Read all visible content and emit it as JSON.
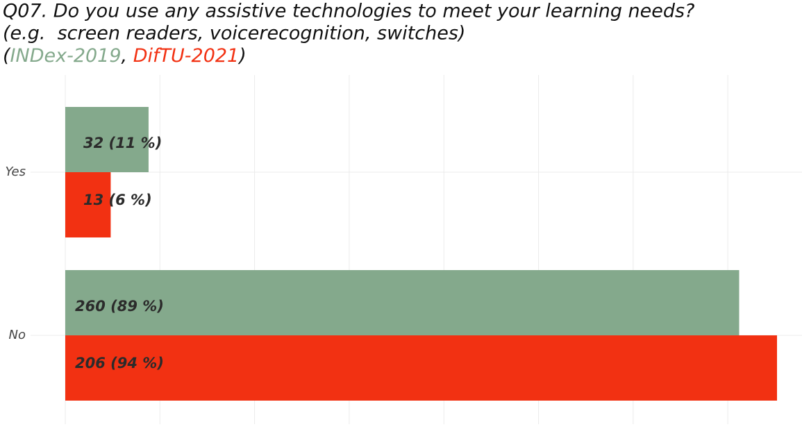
{
  "chart_data": {
    "type": "bar",
    "orientation": "horizontal",
    "title": "Q07. Do you use any assistive technologies to meet your learning needs?",
    "subtitle": "(e.g.  screen readers, voicerecognition, switches)",
    "legend_open": "(",
    "legend_sep": ", ",
    "legend_close": ")",
    "categories": [
      "Yes",
      "No"
    ],
    "series": [
      {
        "name": "INDex-2019",
        "color": "#84a98c",
        "values": [
          11,
          89
        ],
        "value_labels": [
          "32  (11 %)",
          "260  (89 %)"
        ]
      },
      {
        "name": "DifTU-2021",
        "color": "#f23112",
        "values": [
          6,
          94
        ],
        "value_labels": [
          "13  (6 %)",
          "206  (94 %)"
        ]
      }
    ],
    "xlim": [
      0,
      97.3
    ],
    "xticks": [
      0,
      12.5,
      25,
      37.5,
      50,
      62.5,
      75,
      87.5
    ],
    "grid": true
  }
}
